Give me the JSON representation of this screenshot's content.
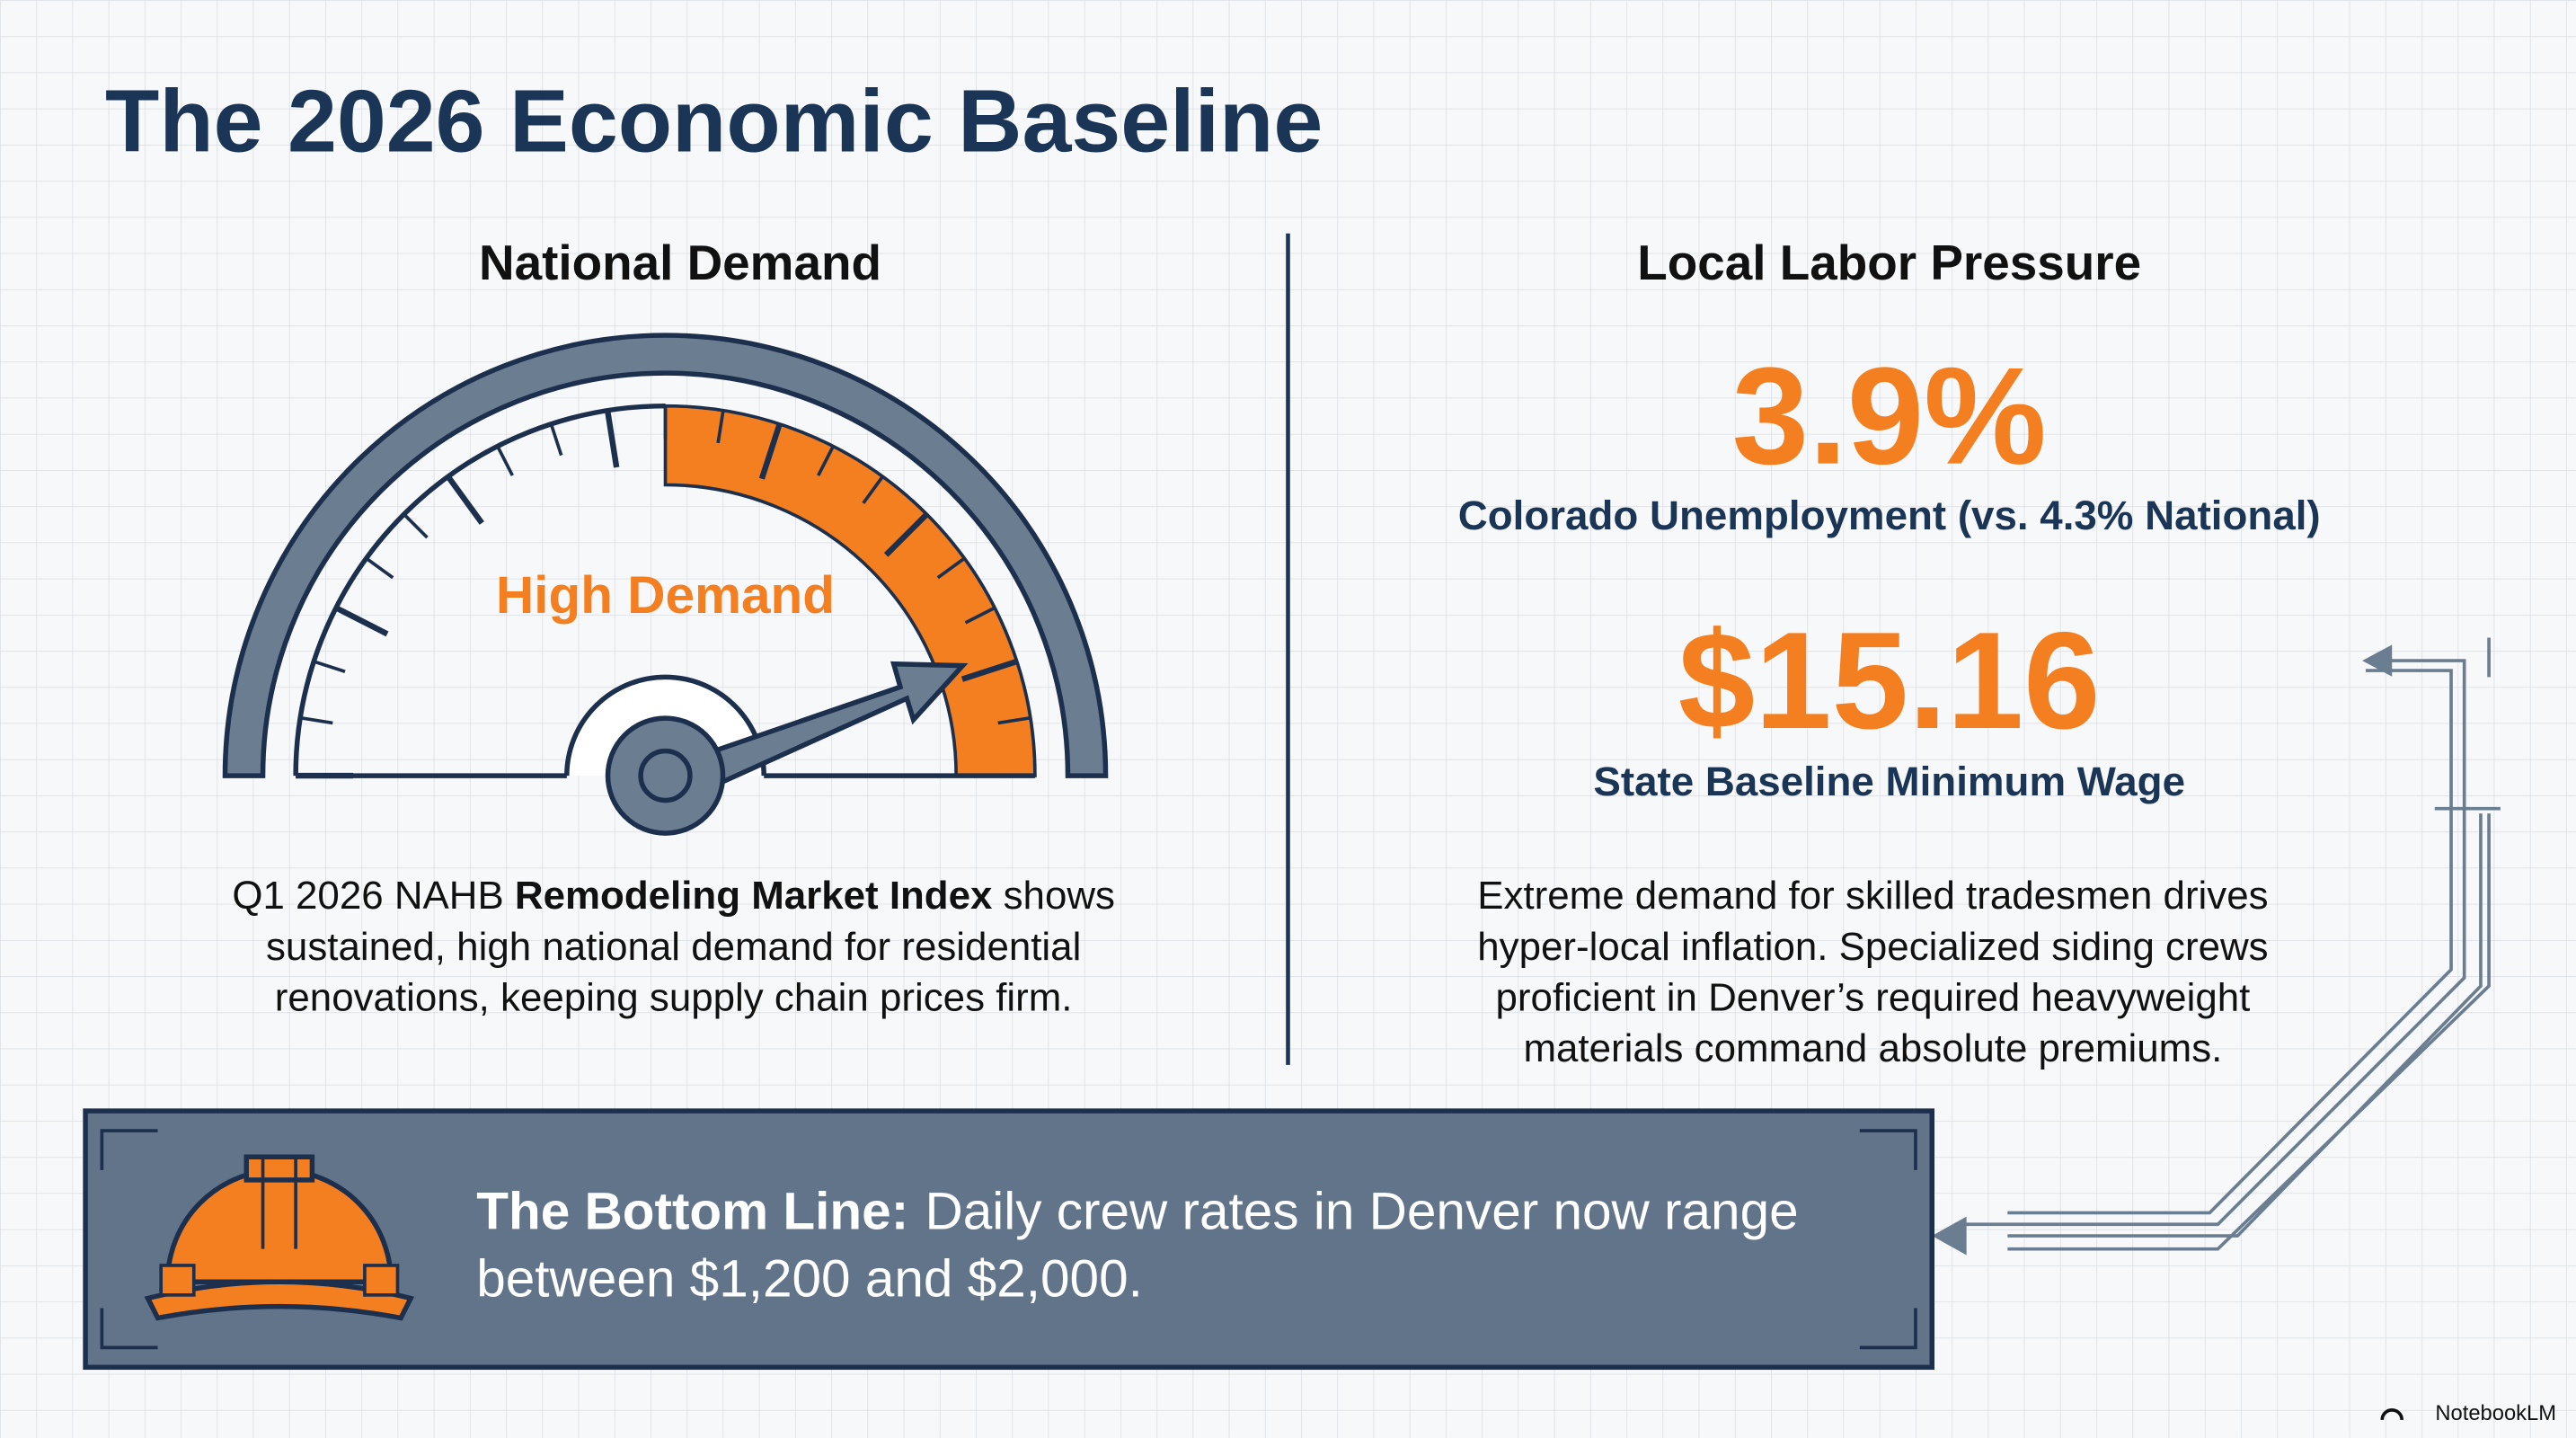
{
  "header": {
    "title": "The 2026 Economic Baseline"
  },
  "left_panel": {
    "heading": "National Demand",
    "gauge_label": "High Demand",
    "description": {
      "lines": [
        [
          "Q1 2026 NAHB ",
          "Remodeling Market Index",
          " shows"
        ],
        [
          "sustained, high national demand for residential"
        ],
        [
          "renovations, keeping supply chain prices firm."
        ]
      ]
    }
  },
  "right_panel": {
    "heading": "Local Labor Pressure",
    "stats": [
      {
        "value": "3.9%",
        "label": "Colorado Unemployment (vs. 4.3% National)"
      },
      {
        "value": "$15.16",
        "label": "State Baseline Minimum Wage"
      }
    ],
    "description": {
      "lines": [
        "Extreme demand for skilled tradesmen drives",
        "hyper-local inflation. Specialized siding crews",
        "proficient in Denver’s required heavyweight",
        "materials command absolute premiums."
      ]
    }
  },
  "bottom_line": {
    "lead": "The Bottom Line:",
    "lines": [
      "Daily crew rates in Denver now range",
      "between $1,200 and $2,000."
    ]
  },
  "footer": {
    "brand": "NotebookLM"
  }
}
